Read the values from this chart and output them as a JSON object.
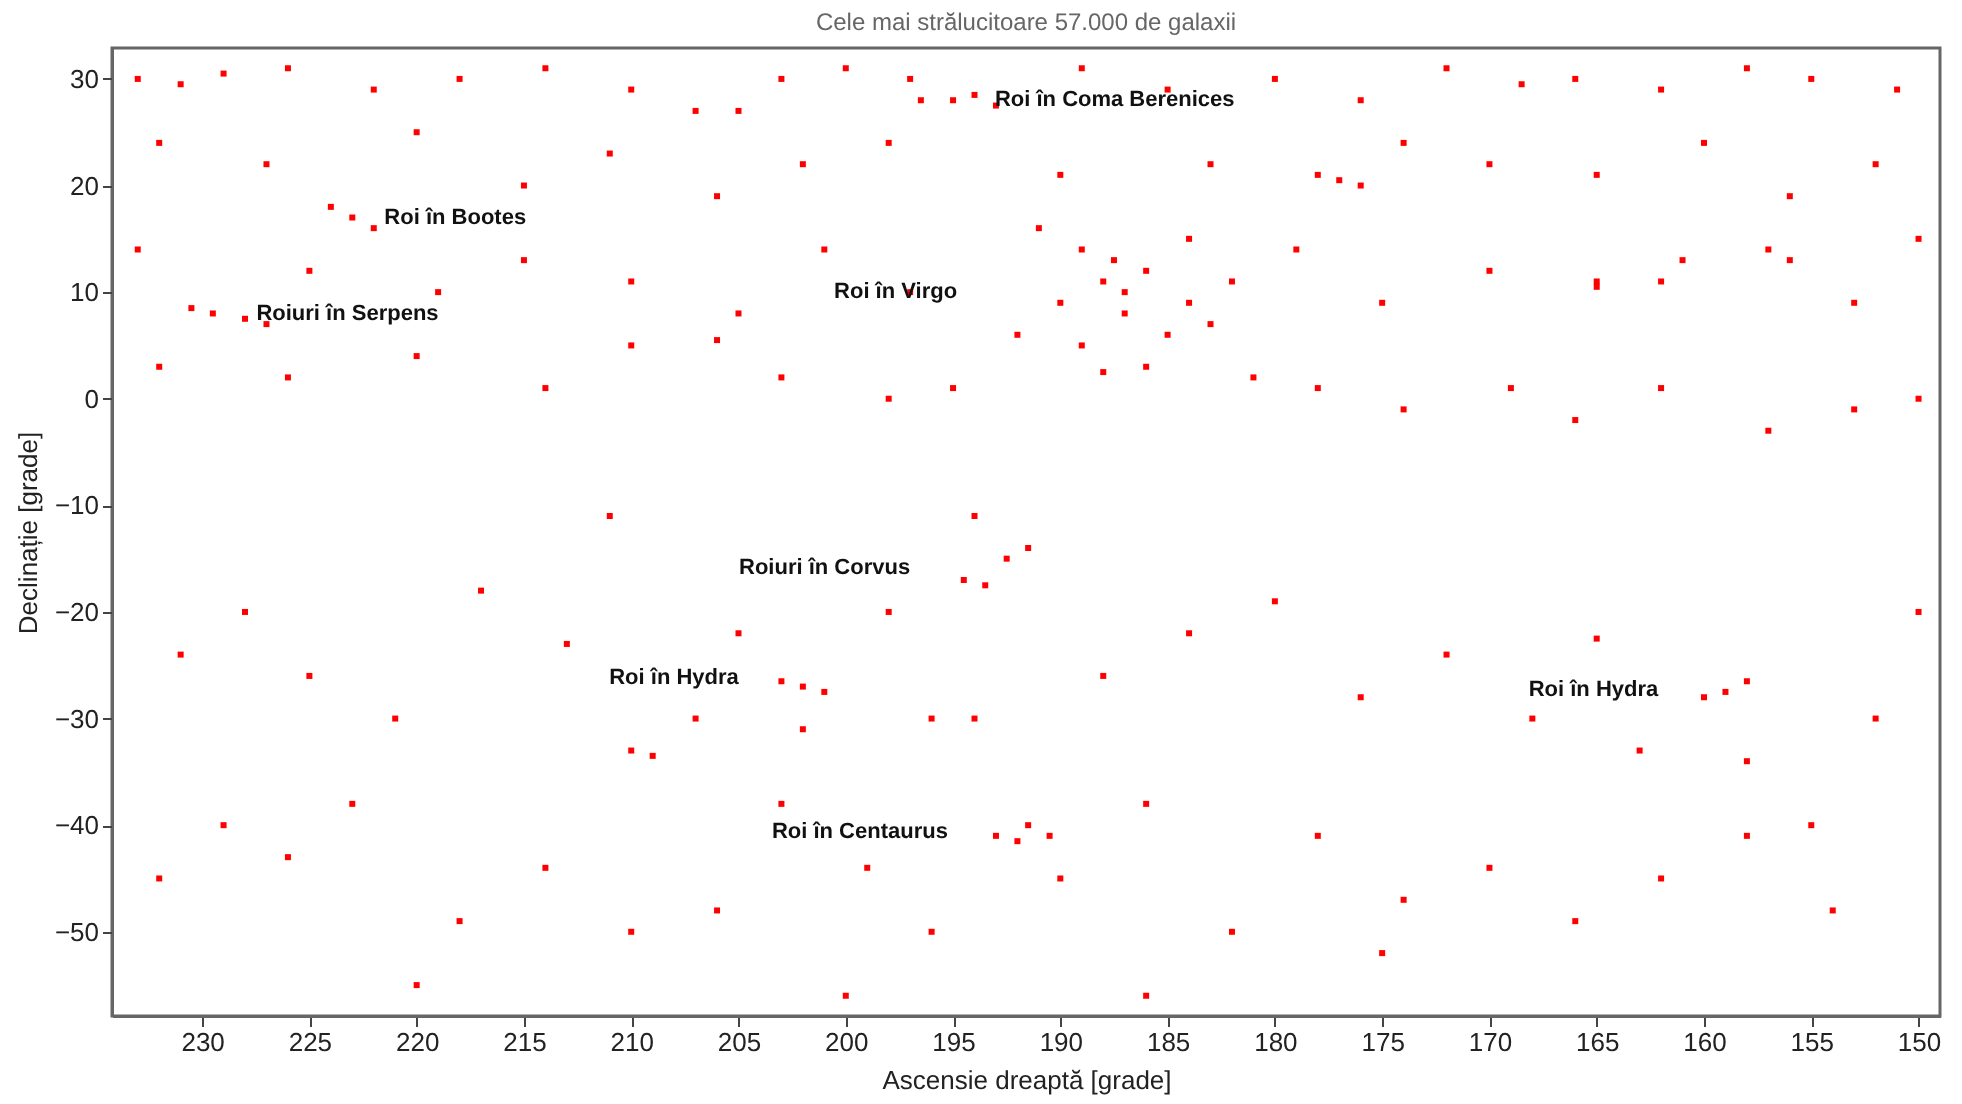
{
  "chart_data": {
    "type": "scatter",
    "title": "Cele mai strălucitoare 57.000 de galaxii",
    "xlabel": "Ascensie dreaptă [grade]",
    "ylabel": "Declinație [grade]",
    "xlim": [
      234.2,
      149
    ],
    "ylim": [
      -57.9,
      32.9
    ],
    "xticks": [
      230,
      225,
      220,
      215,
      210,
      205,
      200,
      195,
      190,
      185,
      180,
      175,
      170,
      165,
      160,
      155,
      150
    ],
    "yticks": [
      -50,
      -40,
      -30,
      -20,
      -10,
      0,
      10,
      20,
      30
    ],
    "marker": "square",
    "annotations": [
      "Roi în Coma Berenices",
      "Roi în Bootes",
      "Roiuri în Serpens",
      "Roi în Virgo",
      "Roiuri în Corvus",
      "Roi în Hydra",
      "Roi în Centaurus",
      "Roi în Hydra"
    ],
    "series": [
      {
        "color": "#ff0000",
        "x": [
          233,
          231,
          229,
          226,
          222,
          218,
          214,
          210,
          207,
          205,
          203,
          200,
          197,
          189,
          185,
          180,
          176,
          172,
          168.5,
          166,
          162,
          158,
          155,
          151,
          232,
          227,
          220,
          215,
          211,
          206,
          202,
          198,
          190,
          183,
          177,
          174,
          170,
          165,
          160,
          156,
          152,
          233,
          225,
          219,
          215,
          210,
          205,
          201,
          197,
          179,
          175,
          170,
          165,
          161,
          156,
          153,
          150,
          232,
          226,
          220,
          214,
          210,
          206,
          203,
          198,
          195,
          178,
          174,
          169,
          166,
          162,
          157,
          153,
          150,
          189,
          187.5,
          186,
          188,
          190,
          184,
          187,
          185,
          183,
          186,
          188,
          181,
          191,
          184,
          182,
          192,
          189,
          187,
          195,
          194,
          196.5,
          193,
          223,
          222,
          224,
          230.5,
          229.5,
          228,
          227,
          176,
          178,
          165,
          157,
          162,
          211,
          194,
          231,
          228,
          225,
          221,
          217,
          213,
          210,
          209,
          207,
          205,
          198,
          196,
          194,
          188,
          184,
          180,
          176,
          172,
          168,
          165,
          163,
          158,
          155,
          152,
          150,
          232,
          229,
          226,
          223,
          218,
          214,
          210,
          206,
          203,
          199,
          196,
          190,
          186,
          182,
          178,
          174,
          170,
          166,
          162,
          158,
          154,
          220,
          200,
          186,
          175,
          194.5,
          193.5,
          192.5,
          191.5,
          202,
          201,
          203,
          202,
          159,
          158,
          160,
          193,
          192,
          190.5,
          191.5
        ],
        "values": [
          30,
          29.5,
          30.5,
          31,
          29,
          30,
          31,
          29,
          27,
          27,
          30,
          31,
          30,
          31,
          29,
          30,
          28,
          31,
          29.5,
          30,
          29,
          31,
          30,
          29,
          24,
          22,
          25,
          20,
          23,
          19,
          22,
          24,
          21,
          22,
          20.5,
          24,
          22,
          21,
          24,
          19,
          22,
          14,
          12,
          10,
          13,
          11,
          8,
          14,
          10,
          14,
          9,
          12,
          10.5,
          13,
          13,
          9,
          15,
          3,
          2,
          4,
          1,
          5,
          5.5,
          2,
          0,
          1,
          1,
          -1,
          1,
          -2,
          1,
          -3,
          -1,
          0,
          14,
          13,
          12,
          11,
          9,
          9,
          8,
          6,
          7,
          3,
          2.5,
          2,
          16,
          15,
          11,
          6,
          5,
          10,
          28,
          28.5,
          28,
          27.5,
          17,
          16,
          18,
          8.5,
          8,
          7.5,
          7,
          20,
          21,
          11,
          14,
          11,
          -11,
          -11,
          -24,
          -20,
          -26,
          -30,
          -18,
          -23,
          -33,
          -33.5,
          -30,
          -22,
          -20,
          -30,
          -30,
          -26,
          -22,
          -19,
          -28,
          -24,
          -30,
          -22.5,
          -33,
          -34,
          -40,
          -30,
          -20,
          -45,
          -40,
          -43,
          -38,
          -49,
          -44,
          -50,
          -48,
          -38,
          -44,
          -50,
          -45,
          -38,
          -50,
          -41,
          -47,
          -44,
          -49,
          -45,
          -41,
          -48,
          -55,
          -56,
          -56,
          -52,
          -17,
          -17.5,
          -15,
          -14,
          -27,
          -27.5,
          -26.5,
          -31,
          -27.5,
          -26.5,
          -28,
          -41,
          -41.5,
          -41,
          -40
        ]
      }
    ]
  }
}
